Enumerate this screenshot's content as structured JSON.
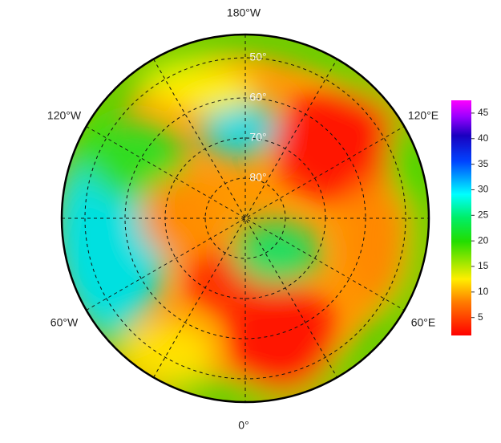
{
  "map": {
    "longitude_labels": [
      "180°W",
      "120°W",
      "120°E",
      "60°W",
      "60°E",
      "0°"
    ],
    "latitude_labels": [
      "50°",
      "60°",
      "70°",
      "80°"
    ],
    "colorbar": {
      "range": [
        1.5,
        47.5
      ],
      "ticks": [
        5,
        10,
        15,
        20,
        25,
        30,
        35,
        40,
        45
      ]
    }
  }
}
